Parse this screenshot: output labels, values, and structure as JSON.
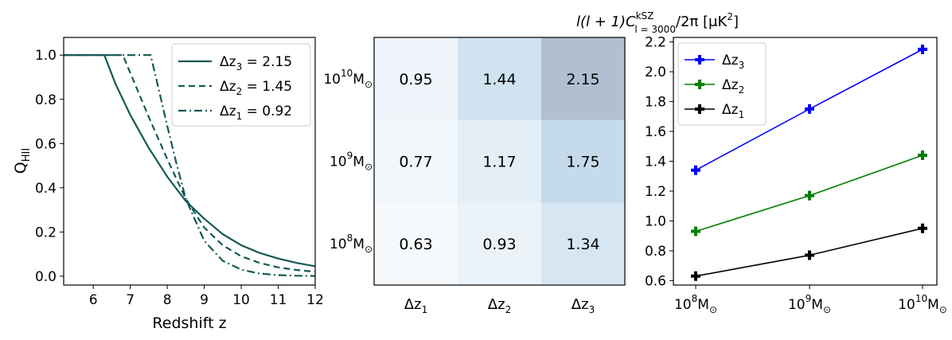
{
  "panels": {
    "left": {
      "type": "line",
      "xlabel": "Redshift z",
      "ylabel": "Q",
      "ylabel_sub": "HII",
      "xlim": [
        5.2,
        12
      ],
      "ylim": [
        -0.04,
        1.08
      ],
      "xticks": [
        6,
        7,
        8,
        9,
        10,
        11,
        12
      ],
      "yticks": [
        0.0,
        0.2,
        0.4,
        0.6,
        0.8,
        1.0
      ],
      "ytick_labels": [
        "0.0",
        "0.2",
        "0.4",
        "0.6",
        "0.8",
        "1.0"
      ],
      "color": "#145a55",
      "series": [
        {
          "label_main": "Δz",
          "label_sub": "3",
          "label_value": " = 2.15",
          "style": "solid",
          "x": [
            5.2,
            6.3,
            6.6,
            7.0,
            7.5,
            8.0,
            8.5,
            9.0,
            9.5,
            10.0,
            10.5,
            11.0,
            11.5,
            12.0
          ],
          "y": [
            1.0,
            1.0,
            0.87,
            0.73,
            0.58,
            0.45,
            0.34,
            0.26,
            0.19,
            0.14,
            0.105,
            0.08,
            0.06,
            0.045
          ]
        },
        {
          "label_main": "Δz",
          "label_sub": "2",
          "label_value": " = 1.45",
          "style": "dashed",
          "x": [
            5.2,
            6.8,
            7.0,
            7.25,
            7.5,
            8.0,
            8.5,
            9.0,
            9.5,
            10.0,
            10.5,
            11.0,
            11.5,
            12.0
          ],
          "y": [
            1.0,
            1.0,
            0.92,
            0.82,
            0.72,
            0.53,
            0.35,
            0.22,
            0.14,
            0.09,
            0.06,
            0.04,
            0.028,
            0.02
          ]
        },
        {
          "label_main": "Δz",
          "label_sub": "1",
          "label_value": " = 0.92",
          "style": "dashdot",
          "x": [
            5.2,
            7.55,
            7.75,
            8.0,
            8.25,
            8.5,
            9.0,
            9.5,
            10.0,
            10.5,
            11.0,
            11.5,
            12.0
          ],
          "y": [
            1.0,
            1.0,
            0.86,
            0.68,
            0.51,
            0.35,
            0.16,
            0.07,
            0.03,
            0.012,
            0.005,
            0.002,
            0.001
          ]
        }
      ]
    },
    "heatmap": {
      "title_main": "l(l + 1)C",
      "title_sup": "kSZ",
      "title_sub": "l = 3000",
      "title_rest": "/2π [μK",
      "title_sup2": "2",
      "title_end": "]",
      "xlabels": [
        {
          "main": "Δz",
          "sub": "1"
        },
        {
          "main": "Δz",
          "sub": "2"
        },
        {
          "main": "Δz",
          "sub": "3"
        }
      ],
      "ylabels": [
        {
          "main": "10",
          "sup": "10",
          "unit": "M",
          "sub": "⊙"
        },
        {
          "main": "10",
          "sup": "9",
          "unit": "M",
          "sub": "⊙"
        },
        {
          "main": "10",
          "sup": "8",
          "unit": "M",
          "sub": "⊙"
        }
      ],
      "values": [
        [
          "0.95",
          "1.44",
          "2.15"
        ],
        [
          "0.77",
          "1.17",
          "1.75"
        ],
        [
          "0.63",
          "0.93",
          "1.34"
        ]
      ],
      "colors": [
        [
          "#eef4f9",
          "#cfe3f0",
          "#b2bfd1"
        ],
        [
          "#f2f7fb",
          "#e3eef6",
          "#c5dbec"
        ],
        [
          "#f6fafd",
          "#ebf3f9",
          "#d6e7f3"
        ]
      ]
    },
    "right": {
      "type": "line",
      "x_categories": [
        {
          "main": "10",
          "sup": "8",
          "unit": "M",
          "sub": "⊙"
        },
        {
          "main": "10",
          "sup": "9",
          "unit": "M",
          "sub": "⊙"
        },
        {
          "main": "10",
          "sup": "10",
          "unit": "M",
          "sub": "⊙"
        }
      ],
      "ylim": [
        0.57,
        2.23
      ],
      "yticks": [
        0.6,
        0.8,
        1.0,
        1.2,
        1.4,
        1.6,
        1.8,
        2.0,
        2.2
      ],
      "ytick_labels": [
        "0.6",
        "0.8",
        "1.0",
        "1.2",
        "1.4",
        "1.6",
        "1.8",
        "2.0",
        "2.2"
      ],
      "legend_position": "upper-left",
      "series": [
        {
          "label_main": "Δz",
          "label_sub": "3",
          "color": "#0000ff",
          "values": [
            1.34,
            1.75,
            2.15
          ]
        },
        {
          "label_main": "Δz",
          "label_sub": "2",
          "color": "#008000",
          "values": [
            0.93,
            1.17,
            1.44
          ]
        },
        {
          "label_main": "Δz",
          "label_sub": "1",
          "color": "#000000",
          "values": [
            0.63,
            0.77,
            0.95
          ]
        }
      ]
    }
  },
  "chart_data": [
    {
      "type": "line",
      "xlabel": "Redshift z",
      "ylabel": "Q_HII",
      "xlim": [
        5.2,
        12
      ],
      "ylim": [
        -0.04,
        1.08
      ],
      "series": [
        {
          "name": "Δz3 = 2.15",
          "x": [
            5.2,
            6.3,
            6.6,
            7.0,
            7.5,
            8.0,
            8.5,
            9.0,
            9.5,
            10.0,
            10.5,
            11.0,
            11.5,
            12.0
          ],
          "y": [
            1.0,
            1.0,
            0.87,
            0.73,
            0.58,
            0.45,
            0.34,
            0.26,
            0.19,
            0.14,
            0.105,
            0.08,
            0.06,
            0.045
          ]
        },
        {
          "name": "Δz2 = 1.45",
          "x": [
            5.2,
            6.8,
            7.0,
            7.25,
            7.5,
            8.0,
            8.5,
            9.0,
            9.5,
            10.0,
            10.5,
            11.0,
            11.5,
            12.0
          ],
          "y": [
            1.0,
            1.0,
            0.92,
            0.82,
            0.72,
            0.53,
            0.35,
            0.22,
            0.14,
            0.09,
            0.06,
            0.04,
            0.028,
            0.02
          ]
        },
        {
          "name": "Δz1 = 0.92",
          "x": [
            5.2,
            7.55,
            7.75,
            8.0,
            8.25,
            8.5,
            9.0,
            9.5,
            10.0,
            10.5,
            11.0,
            11.5,
            12.0
          ],
          "y": [
            1.0,
            1.0,
            0.86,
            0.68,
            0.51,
            0.35,
            0.16,
            0.07,
            0.03,
            0.012,
            0.005,
            0.002,
            0.001
          ]
        }
      ]
    },
    {
      "type": "heatmap",
      "title": "l(l+1)C_{l=3000}^{kSZ}/2π [μK^2]",
      "x_categories": [
        "Δz1",
        "Δz2",
        "Δz3"
      ],
      "y_categories": [
        "10^10 M⊙",
        "10^9 M⊙",
        "10^8 M⊙"
      ],
      "values": [
        [
          0.95,
          1.44,
          2.15
        ],
        [
          0.77,
          1.17,
          1.75
        ],
        [
          0.63,
          0.93,
          1.34
        ]
      ]
    },
    {
      "type": "line",
      "categories": [
        "10^8 M⊙",
        "10^9 M⊙",
        "10^10 M⊙"
      ],
      "ylim": [
        0.57,
        2.23
      ],
      "series": [
        {
          "name": "Δz3",
          "values": [
            1.34,
            1.75,
            2.15
          ]
        },
        {
          "name": "Δz2",
          "values": [
            0.93,
            1.17,
            1.44
          ]
        },
        {
          "name": "Δz1",
          "values": [
            0.63,
            0.77,
            0.95
          ]
        }
      ]
    }
  ]
}
